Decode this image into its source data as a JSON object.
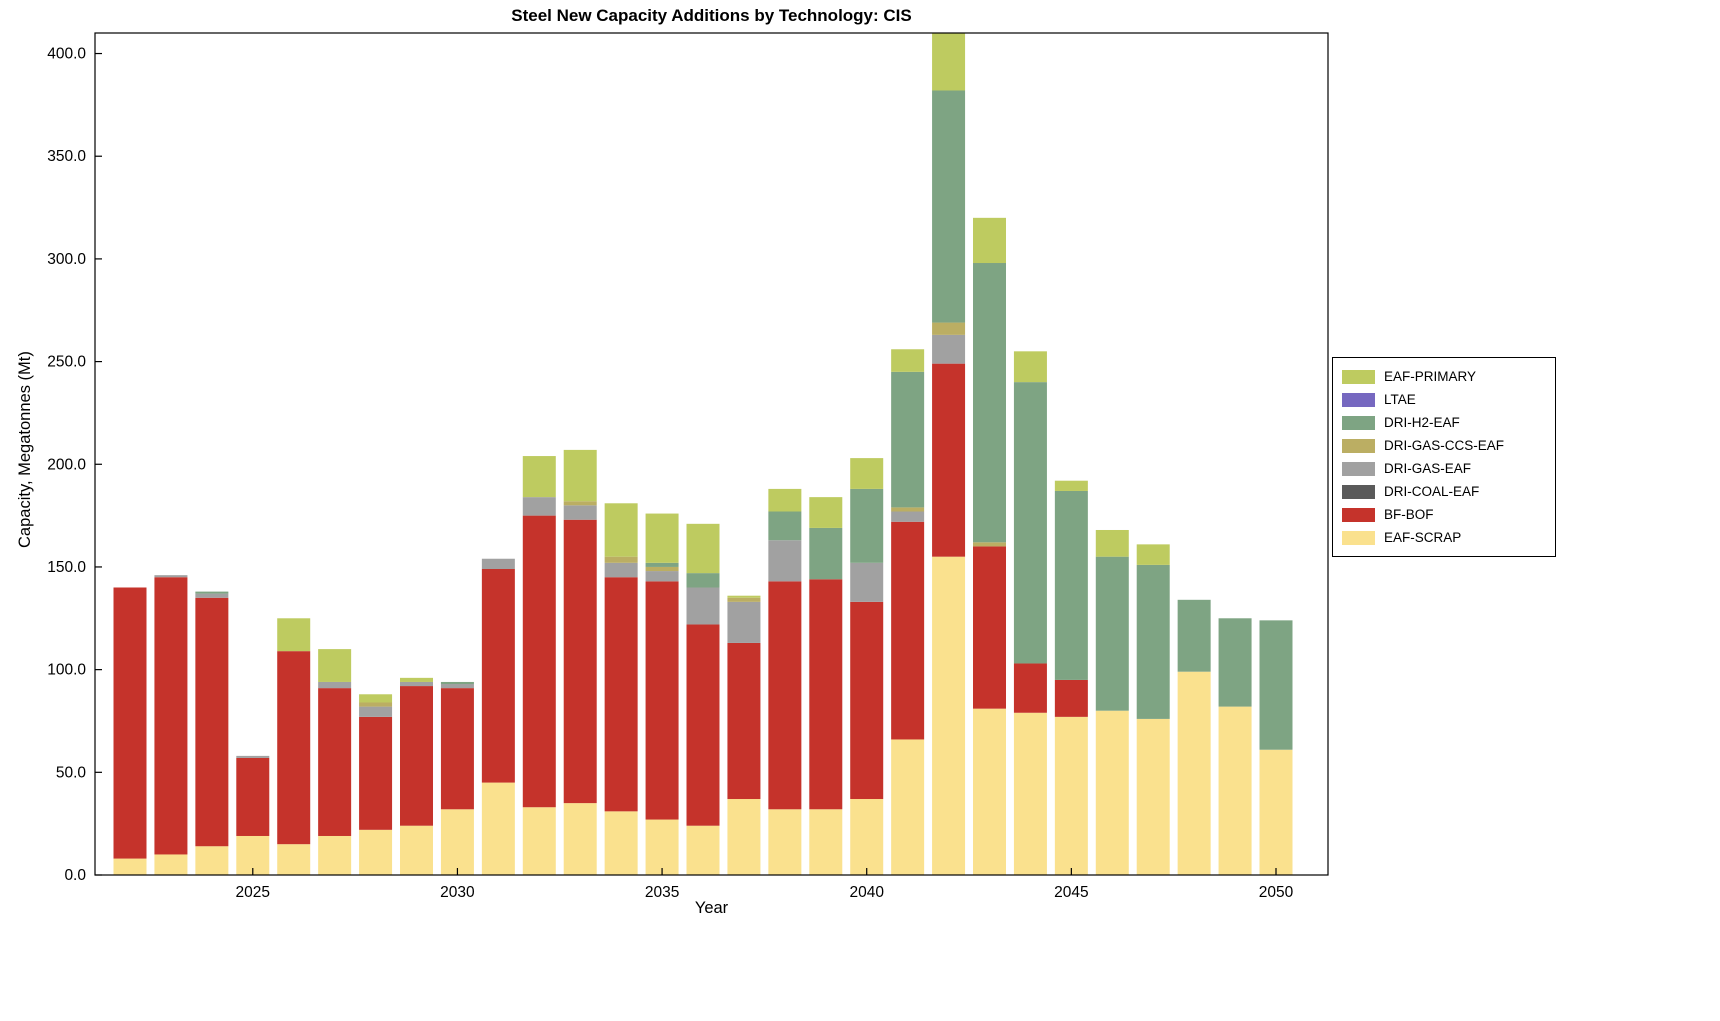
{
  "chart_data": {
    "type": "bar",
    "stacked": true,
    "title": "Steel New Capacity Additions by Technology: CIS",
    "xlabel": "Year",
    "ylabel": "Capacity, Megatonnes (Mt)",
    "ylim": [
      0,
      410
    ],
    "ytick_step": 50,
    "ytick_decimals": 1,
    "xticks": [
      2025,
      2030,
      2035,
      2040,
      2045,
      2050
    ],
    "grid": false,
    "legend_position": "right-outside",
    "years": [
      2022,
      2023,
      2024,
      2025,
      2026,
      2027,
      2028,
      2029,
      2030,
      2031,
      2032,
      2033,
      2034,
      2035,
      2036,
      2037,
      2038,
      2039,
      2040,
      2041,
      2042,
      2043,
      2044,
      2045,
      2046,
      2047,
      2048,
      2049,
      2050
    ],
    "series": [
      {
        "name": "EAF-SCRAP",
        "color": "#FAE18E",
        "values": [
          8,
          10,
          14,
          19,
          15,
          19,
          22,
          24,
          32,
          45,
          33,
          35,
          31,
          27,
          24,
          37,
          32,
          32,
          37,
          66,
          155,
          81,
          79,
          77,
          80,
          76,
          99,
          82,
          61
        ]
      },
      {
        "name": "BF-BOF",
        "color": "#C5332B",
        "values": [
          132,
          135,
          121,
          38,
          94,
          72,
          55,
          68,
          59,
          104,
          142,
          138,
          114,
          116,
          98,
          76,
          111,
          112,
          96,
          106,
          94,
          79,
          24,
          18,
          0,
          0,
          0,
          0,
          0
        ]
      },
      {
        "name": "DRI-COAL-EAF",
        "color": "#5A5A5A",
        "values": [
          0,
          0,
          0,
          0,
          0,
          0,
          0,
          0,
          0,
          0,
          0,
          0,
          0,
          0,
          0,
          0,
          0,
          0,
          0,
          0,
          0,
          0,
          0,
          0,
          0,
          0,
          0,
          0,
          0
        ]
      },
      {
        "name": "DRI-GAS-EAF",
        "color": "#A1A1A1",
        "values": [
          0,
          1,
          2,
          1,
          0,
          3,
          5,
          2,
          2,
          5,
          9,
          7,
          7,
          5,
          18,
          20,
          20,
          0,
          19,
          5,
          14,
          0,
          0,
          0,
          0,
          0,
          0,
          0,
          0
        ]
      },
      {
        "name": "DRI-GAS-CCS-EAF",
        "color": "#BBAE63",
        "values": [
          0,
          0,
          0,
          0,
          0,
          0,
          2,
          0,
          0,
          0,
          0,
          2,
          3,
          2,
          0,
          2,
          0,
          0,
          0,
          2,
          6,
          2,
          0,
          0,
          0,
          0,
          0,
          0,
          0
        ]
      },
      {
        "name": "DRI-H2-EAF",
        "color": "#7EA483",
        "values": [
          0,
          0,
          1,
          0,
          0,
          0,
          0,
          0,
          1,
          0,
          0,
          0,
          0,
          2,
          7,
          0,
          14,
          25,
          36,
          66,
          113,
          136,
          137,
          92,
          75,
          75,
          35,
          43,
          63
        ]
      },
      {
        "name": "LTAE",
        "color": "#7668C0",
        "values": [
          0,
          0,
          0,
          0,
          0,
          0,
          0,
          0,
          0,
          0,
          0,
          0,
          0,
          0,
          0,
          0,
          0,
          0,
          0,
          0,
          0,
          0,
          0,
          0,
          0,
          0,
          0,
          0,
          0
        ]
      },
      {
        "name": "EAF-PRIMARY",
        "color": "#BECB60",
        "values": [
          0,
          0,
          0,
          0,
          16,
          16,
          4,
          2,
          0,
          0,
          20,
          25,
          26,
          24,
          24,
          1,
          11,
          15,
          15,
          11,
          28,
          22,
          15,
          5,
          13,
          10,
          0,
          0,
          0
        ]
      }
    ],
    "legend_order_top_to_bottom": [
      "EAF-PRIMARY",
      "LTAE",
      "DRI-H2-EAF",
      "DRI-GAS-CCS-EAF",
      "DRI-GAS-EAF",
      "DRI-COAL-EAF",
      "BF-BOF",
      "EAF-SCRAP"
    ],
    "axis_color": "#000000",
    "background_color": "#ffffff"
  }
}
